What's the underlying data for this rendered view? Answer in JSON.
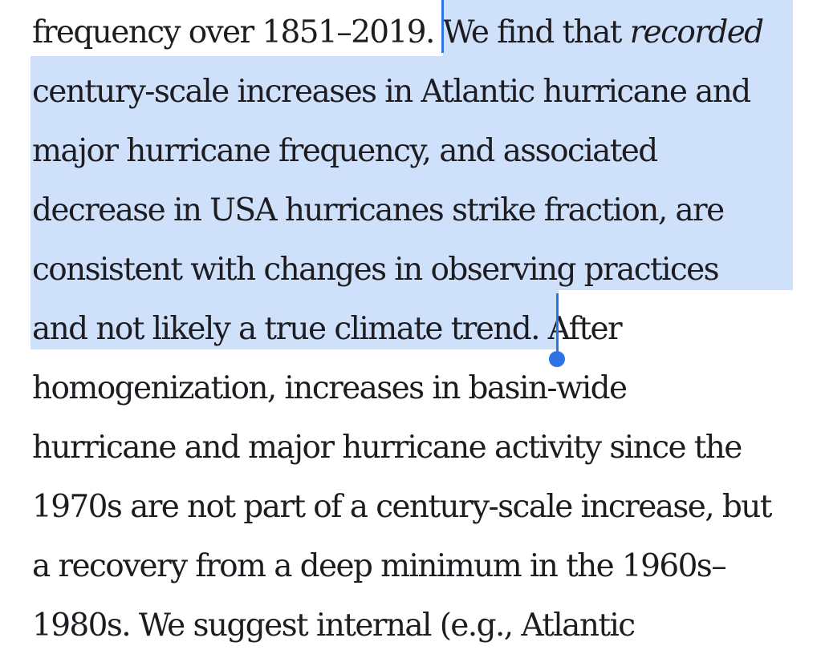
{
  "selection_color": "#cfe0fb",
  "handle_color": "#2f74e6",
  "text_color": "#1c1c21",
  "lines": [
    {
      "a": "frequency over 1851–2019. ",
      "b": "We find that ",
      "c": "recorded",
      "d": ""
    },
    {
      "a": "century-scale increases in Atlantic hurricane and",
      "b": "",
      "c": "",
      "d": ""
    },
    {
      "a": "major hurricane frequency, and associated",
      "b": "",
      "c": "",
      "d": ""
    },
    {
      "a": "decrease in USA hurricanes strike fraction, are",
      "b": "",
      "c": "",
      "d": ""
    },
    {
      "a": "consistent with changes in observing practices",
      "b": "",
      "c": "",
      "d": ""
    },
    {
      "a": "and not likely a true climate trend. ",
      "b": "After",
      "c": "",
      "d": ""
    },
    {
      "a": "homogenization, increases in basin-wide",
      "b": "",
      "c": "",
      "d": ""
    },
    {
      "a": "hurricane and major hurricane activity since the",
      "b": "",
      "c": "",
      "d": ""
    },
    {
      "a": "1970s are not part of a century-scale increase, but",
      "b": "",
      "c": "",
      "d": ""
    },
    {
      "a": "a recovery from a deep minimum in the 1960s–",
      "b": "",
      "c": "",
      "d": ""
    },
    {
      "a": "1980s. We suggest internal (e.g., Atlantic",
      "b": "",
      "c": "",
      "d": ""
    }
  ]
}
